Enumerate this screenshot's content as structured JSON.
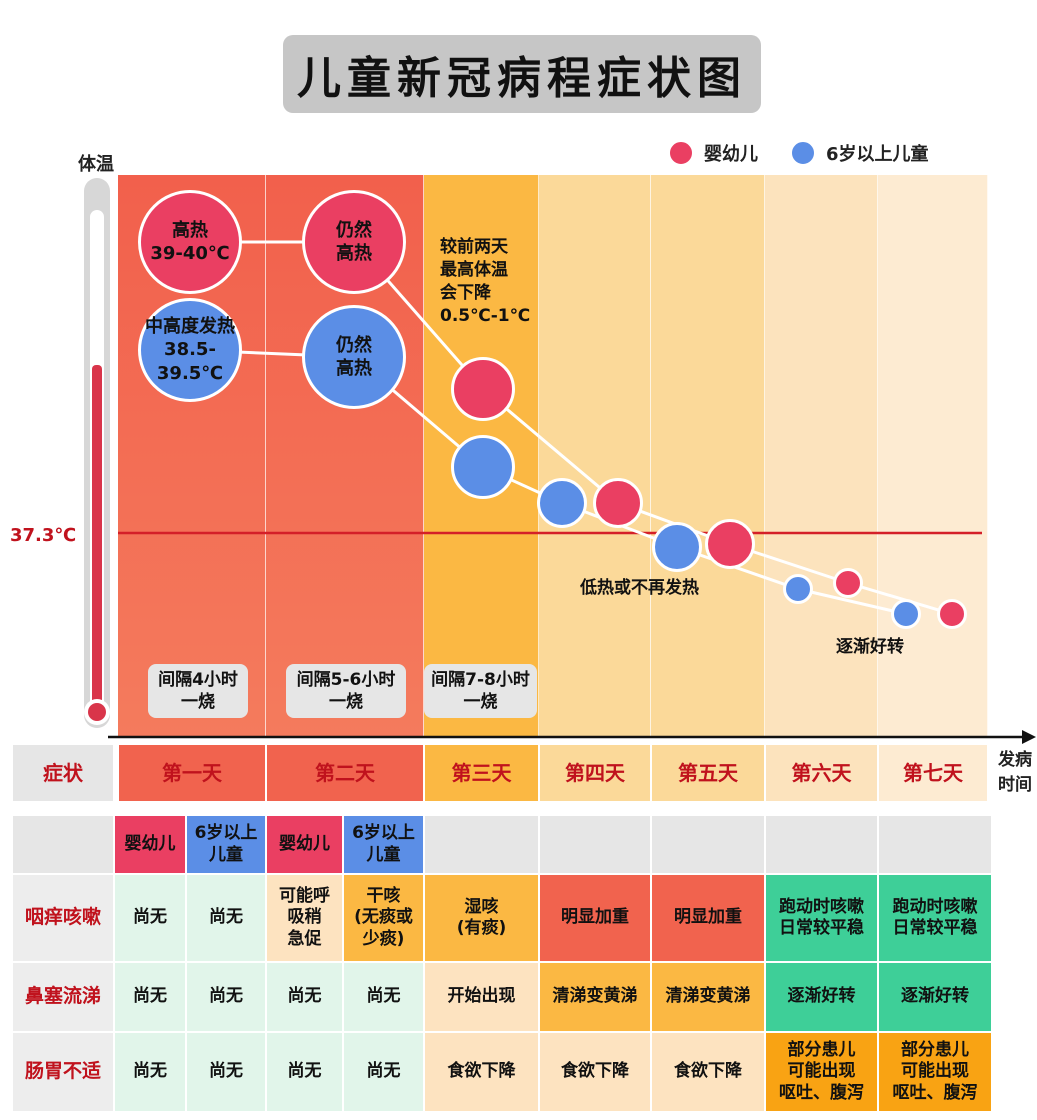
{
  "title": "儿童新冠病程症状图",
  "legend": [
    {
      "label": "婴幼儿",
      "color": "#ea3f62"
    },
    {
      "label": "6岁以上儿童",
      "color": "#5b8ee6"
    }
  ],
  "chart_data": {
    "type": "scatter",
    "title": "儿童新冠病程症状图",
    "ylabel": "体温",
    "xlabel": "发病时间",
    "categories": [
      "第一天",
      "第二天",
      "第三天",
      "第四天",
      "第五天",
      "第六天",
      "第七天"
    ],
    "reference_line": {
      "label": "37.3℃",
      "value": 37.3
    },
    "series": [
      {
        "name": "婴幼儿",
        "color": "#ea3f62",
        "points": [
          {
            "x": 1.0,
            "label": "高热\n39-40℃"
          },
          {
            "x": 2.0,
            "label": "仍然\n高热"
          },
          {
            "x": 3.0
          },
          {
            "x": 4.0
          },
          {
            "x": 5.0
          },
          {
            "x": 6.0
          },
          {
            "x": 7.0
          }
        ]
      },
      {
        "name": "6岁以上儿童",
        "color": "#5b8ee6",
        "points": [
          {
            "x": 1.0,
            "label": "中高度发热\n38.5-39.5℃"
          },
          {
            "x": 2.0,
            "label": "仍然\n高热"
          },
          {
            "x": 3.0
          },
          {
            "x": 3.75
          },
          {
            "x": 4.75
          },
          {
            "x": 5.75
          },
          {
            "x": 6.75
          }
        ]
      }
    ],
    "annotations": [
      "较前两天\n最高体温\n会下降\n0.5℃-1℃",
      "低热或不再发热",
      "逐渐好转"
    ]
  },
  "intervals": [
    "间隔4小时\n一烧",
    "间隔5-6小时\n一烧",
    "间隔7-8小时\n一烧"
  ],
  "day_row": {
    "header": "症状",
    "axis_end": "发病\n时间"
  },
  "table": {
    "subheaders": [
      "婴幼儿",
      "6岁以上\n儿童",
      "婴幼儿",
      "6岁以上\n儿童"
    ],
    "rows": [
      {
        "name": "咽痒咳嗽",
        "cells": [
          "尚无",
          "尚无",
          "可能呼\n吸稍\n急促",
          "干咳\n(无痰或\n少痰)",
          "湿咳\n(有痰)",
          "明显加重",
          "明显加重",
          "跑动时咳嗽\n日常较平稳",
          "跑动时咳嗽\n日常较平稳"
        ]
      },
      {
        "name": "鼻塞流涕",
        "cells": [
          "尚无",
          "尚无",
          "尚无",
          "尚无",
          "开始出现",
          "清涕变黄涕",
          "清涕变黄涕",
          "逐渐好转",
          "逐渐好转"
        ]
      },
      {
        "name": "肠胃不适",
        "cells": [
          "尚无",
          "尚无",
          "尚无",
          "尚无",
          "食欲下降",
          "食欲下降",
          "食欲下降",
          "部分患儿\n可能出现\n呕吐、腹泻",
          "部分患儿\n可能出现\n呕吐、腹泻"
        ]
      }
    ]
  }
}
